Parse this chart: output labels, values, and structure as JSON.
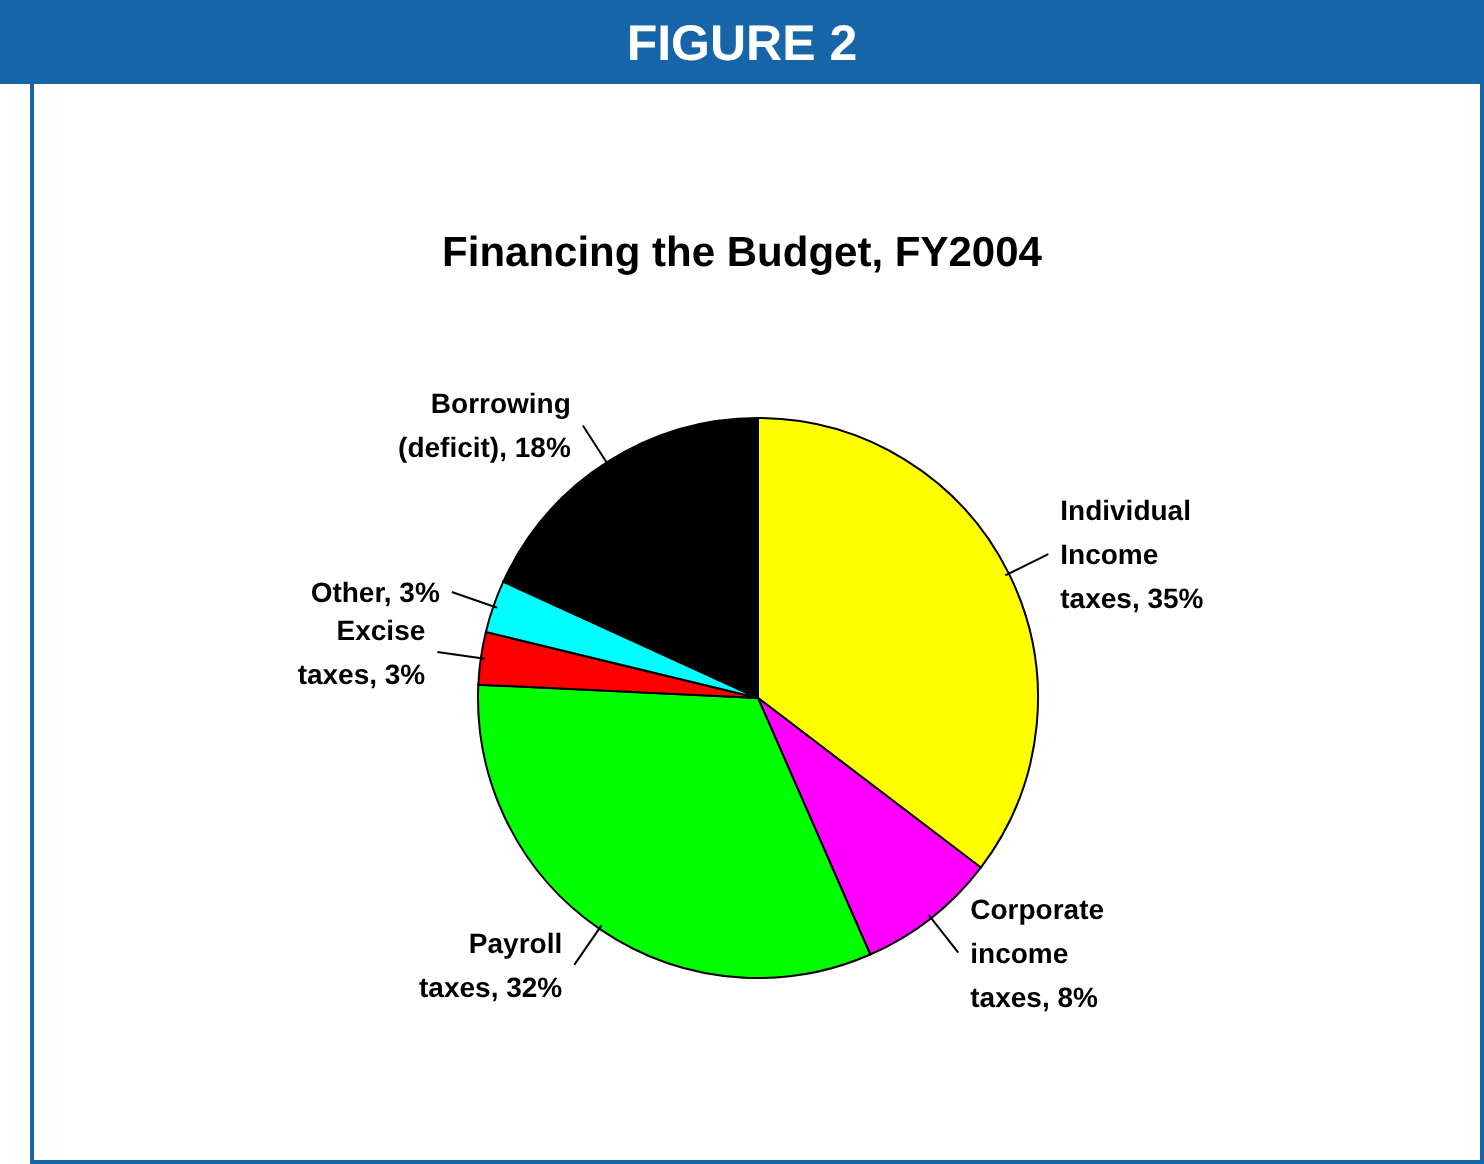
{
  "chart_data": {
    "type": "pie",
    "title": "FIGURE 2",
    "subtitle": "Financing the Budget, FY2004",
    "categories": [
      "Individual Income taxes",
      "Corporate income taxes",
      "Payroll taxes",
      "Excise taxes",
      "Other",
      "Borrowing (deficit)"
    ],
    "values": [
      35,
      8,
      32,
      3,
      3,
      18
    ],
    "value_labels": [
      "35%",
      "8%",
      "32%",
      "3%",
      "3%",
      "18%"
    ],
    "colors": [
      "#ffff00",
      "#ff00ff",
      "#00ff00",
      "#ff0000",
      "#00ffff",
      "#000000"
    ]
  }
}
